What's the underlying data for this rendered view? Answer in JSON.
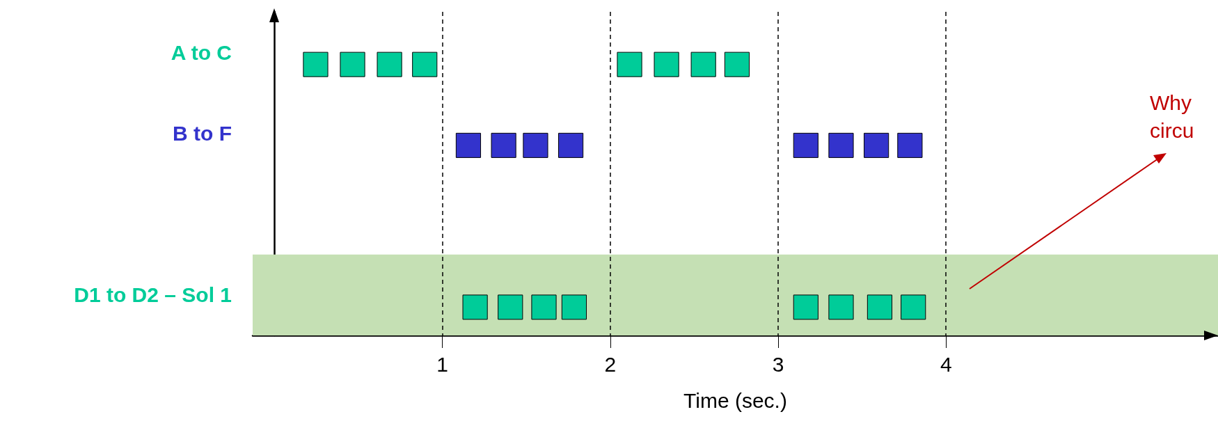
{
  "chart_data": {
    "type": "bar",
    "orientation": "horizontal",
    "xlabel": "Time (sec.)",
    "categories": [
      "A to C",
      "B to F",
      null,
      "D1 to D2 – Sol 1"
    ],
    "xlim": [
      -0.13,
      5.62
    ],
    "xticks": [
      1,
      2,
      3,
      4
    ],
    "grid": false,
    "series": [
      {
        "color": "#00cc99",
        "values": [
          0.15,
          null,
          null,
          null
        ],
        "base": [
          0.17,
          null,
          null,
          null
        ]
      },
      {
        "color": "#00cc99",
        "values": [
          0.15,
          null,
          null,
          null
        ],
        "base": [
          0.39,
          null,
          null,
          null
        ]
      },
      {
        "color": "#00cc99",
        "values": [
          0.15,
          null,
          null,
          null
        ],
        "base": [
          0.61,
          null,
          null,
          null
        ]
      },
      {
        "color": "#00cc99",
        "values": [
          0.15,
          null,
          null,
          null
        ],
        "base": [
          0.82,
          null,
          null,
          null
        ]
      },
      {
        "color": "#00cc99",
        "values": [
          0.15,
          null,
          null,
          null
        ],
        "base": [
          2.04,
          null,
          null,
          null
        ]
      },
      {
        "color": "#00cc99",
        "values": [
          0.15,
          null,
          null,
          null
        ],
        "base": [
          2.26,
          null,
          null,
          null
        ]
      },
      {
        "color": "#00cc99",
        "values": [
          0.15,
          null,
          null,
          null
        ],
        "base": [
          2.48,
          null,
          null,
          null
        ]
      },
      {
        "color": "#00cc99",
        "values": [
          0.15,
          null,
          null,
          null
        ],
        "base": [
          2.68,
          null,
          null,
          null
        ]
      },
      {
        "color": "#3333cc",
        "values": [
          null,
          0.15,
          null,
          null
        ],
        "base": [
          null,
          1.08,
          null,
          null
        ]
      },
      {
        "color": "#3333cc",
        "values": [
          null,
          0.15,
          null,
          null
        ],
        "base": [
          null,
          1.29,
          null,
          null
        ]
      },
      {
        "color": "#3333cc",
        "values": [
          null,
          0.15,
          null,
          null
        ],
        "base": [
          null,
          1.48,
          null,
          null
        ]
      },
      {
        "color": "#3333cc",
        "values": [
          null,
          0.15,
          null,
          null
        ],
        "base": [
          null,
          1.69,
          null,
          null
        ]
      },
      {
        "color": "#3333cc",
        "values": [
          null,
          0.15,
          null,
          null
        ],
        "base": [
          null,
          3.09,
          null,
          null
        ]
      },
      {
        "color": "#3333cc",
        "values": [
          null,
          0.15,
          null,
          null
        ],
        "base": [
          null,
          3.3,
          null,
          null
        ]
      },
      {
        "color": "#3333cc",
        "values": [
          null,
          0.15,
          null,
          null
        ],
        "base": [
          null,
          3.51,
          null,
          null
        ]
      },
      {
        "color": "#3333cc",
        "values": [
          null,
          0.15,
          null,
          null
        ],
        "base": [
          null,
          3.71,
          null,
          null
        ]
      },
      {
        "color": "#00cc99",
        "values": [
          null,
          null,
          null,
          0.15
        ],
        "base": [
          null,
          null,
          null,
          1.12
        ]
      },
      {
        "color": "#00cc99",
        "values": [
          null,
          null,
          null,
          0.15
        ],
        "base": [
          null,
          null,
          null,
          1.33
        ]
      },
      {
        "color": "#00cc99",
        "values": [
          null,
          null,
          null,
          0.15
        ],
        "base": [
          null,
          null,
          null,
          1.53
        ]
      },
      {
        "color": "#00cc99",
        "values": [
          null,
          null,
          null,
          0.15
        ],
        "base": [
          null,
          null,
          null,
          1.71
        ]
      },
      {
        "color": "#00cc99",
        "values": [
          null,
          null,
          null,
          0.15
        ],
        "base": [
          null,
          null,
          null,
          3.09
        ]
      },
      {
        "color": "#00cc99",
        "values": [
          null,
          null,
          null,
          0.15
        ],
        "base": [
          null,
          null,
          null,
          3.3
        ]
      },
      {
        "color": "#00cc99",
        "values": [
          null,
          null,
          null,
          0.15
        ],
        "base": [
          null,
          null,
          null,
          3.53
        ]
      },
      {
        "color": "#00cc99",
        "values": [
          null,
          null,
          null,
          0.15
        ],
        "base": [
          null,
          null,
          null,
          3.73
        ]
      }
    ],
    "ref_lines": [
      {
        "axis": "x",
        "value": 1,
        "line_style": "dashed",
        "color": "#000000"
      },
      {
        "axis": "x",
        "value": 2,
        "line_style": "dashed",
        "color": "#000000"
      },
      {
        "axis": "x",
        "value": 3,
        "line_style": "dashed",
        "color": "#000000"
      },
      {
        "axis": "x",
        "value": 4,
        "line_style": "dashed",
        "color": "#000000"
      }
    ],
    "bands": [
      {
        "axis": "y",
        "from": "D1 to D2 – Sol 1",
        "to": "D1 to D2 – Sol 1",
        "color": "#c5e0b4"
      }
    ],
    "annotations": [
      "Why\ncircu"
    ]
  }
}
